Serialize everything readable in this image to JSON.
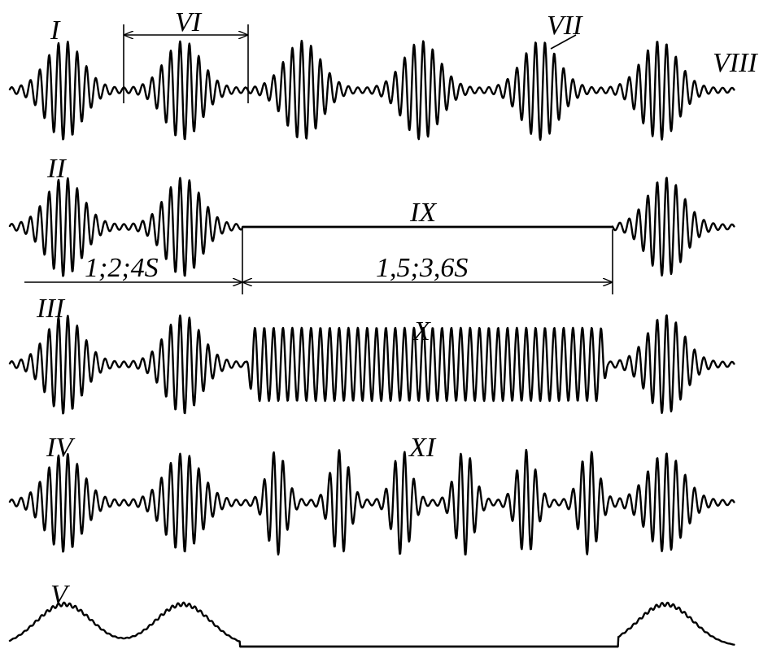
{
  "labels": {
    "row1": "I",
    "row2": "II",
    "row3": "III",
    "row4": "IV",
    "row5": "V",
    "period_marker": "VI",
    "pointer_marker": "VII",
    "end_marker": "VIII",
    "pause_marker": "IX",
    "continuous_marker": "X",
    "modulated_marker": "XI"
  },
  "dimensions": {
    "left_interval": "1;2;4S",
    "right_interval": "1,5;3,6S"
  }
}
